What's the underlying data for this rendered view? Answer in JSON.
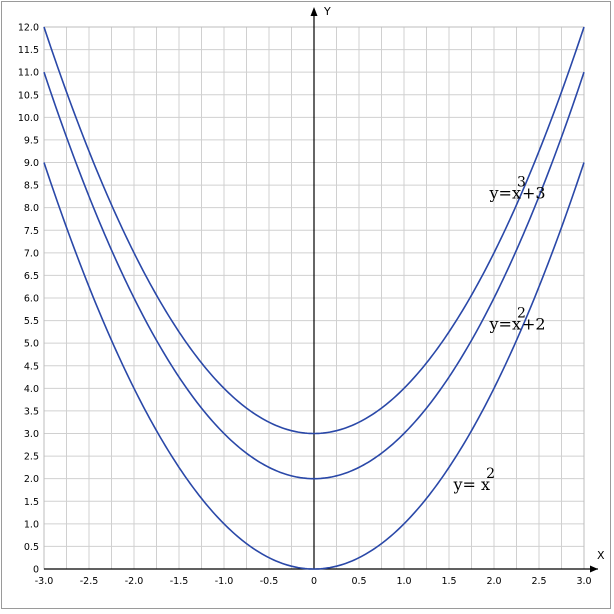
{
  "chart_data": {
    "type": "line",
    "title": "",
    "xlabel": "X",
    "ylabel": "Y",
    "xlim": [
      -3.0,
      3.0
    ],
    "ylim": [
      0,
      12.0
    ],
    "grid": true,
    "x_ticks": [
      "-3.0",
      "-2.5",
      "-2.0",
      "-1.5",
      "-1.0",
      "-0.5",
      "0",
      "0.5",
      "1.0",
      "1.5",
      "2.0",
      "2.5",
      "3.0"
    ],
    "y_ticks": [
      "0",
      "0.5",
      "1.0",
      "1.5",
      "2.0",
      "2.5",
      "3.0",
      "3.5",
      "4.0",
      "4.5",
      "5.0",
      "5.5",
      "6.0",
      "6.5",
      "7.0",
      "7.5",
      "8.0",
      "8.5",
      "9.0",
      "9.5",
      "10.0",
      "10.5",
      "11.0",
      "11.5",
      "12.0"
    ],
    "series": [
      {
        "offset": 3,
        "color": "#2a48a8"
      },
      {
        "offset": 2,
        "color": "#2a48a8"
      },
      {
        "offset": 0,
        "color": "#2a48a8"
      }
    ],
    "annotations": [
      {
        "base": "y=x",
        "sup": "3",
        "tail": "+3",
        "x": 1.95,
        "y": 8.2
      },
      {
        "base": "y=x",
        "sup": "2",
        "tail": "+2",
        "x": 1.95,
        "y": 5.3
      },
      {
        "base": "y= x",
        "sup": "2",
        "tail": "",
        "x": 1.55,
        "y": 1.75
      }
    ]
  }
}
